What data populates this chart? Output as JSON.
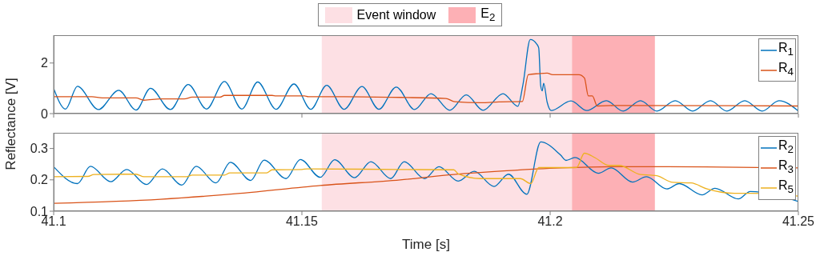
{
  "chart_data": [
    {
      "type": "line",
      "ylabel": "Reflectance [V]",
      "xlim": [
        41.1,
        41.25
      ],
      "xticks": [
        41.1,
        41.15,
        41.2,
        41.25
      ],
      "ylim": [
        0,
        3.1
      ],
      "yticks": [
        0,
        2
      ],
      "tick_labels": "y",
      "legend": "top right",
      "bands": [
        {
          "axis": "x",
          "from": 41.154,
          "to": 41.2044,
          "label": "Event window",
          "color": "#fde0e4"
        },
        {
          "axis": "x",
          "from": 41.2044,
          "to": 41.2211,
          "label": "E$_{2}$",
          "color": "#fdb0b5"
        }
      ],
      "series": [
        {
          "name": "R$_{1}$",
          "color": "#0072bd",
          "x": [
            41.1,
            41.1024,
            41.1048,
            41.109,
            41.1131,
            41.1166,
            41.1195,
            41.1235,
            41.1271,
            41.1308,
            41.1344,
            41.1379,
            41.1411,
            41.1448,
            41.1484,
            41.1518,
            41.155,
            41.1585,
            41.1621,
            41.1655,
            41.169,
            41.1727,
            41.176,
            41.1798,
            41.1831,
            41.1865,
            41.1905,
            41.1935,
            41.1945,
            41.196,
            41.1973,
            41.1977,
            41.1981,
            41.1984,
            41.1987,
            41.1994,
            41.2002,
            41.2042,
            41.2074,
            41.2113,
            41.2147,
            41.2182,
            41.2215,
            41.2252,
            41.2287,
            41.2323,
            41.2356,
            41.2392,
            41.2427,
            41.2461,
            41.25
          ],
          "values": [
            1.0,
            0.18,
            1.08,
            0.16,
            0.92,
            0.14,
            1.0,
            0.16,
            1.15,
            0.18,
            1.27,
            0.18,
            1.25,
            0.17,
            1.17,
            0.17,
            1.12,
            0.17,
            1.07,
            0.17,
            1.05,
            0.16,
            0.79,
            0.13,
            0.74,
            0.13,
            0.79,
            0.29,
            1.12,
            2.93,
            2.75,
            2.6,
            1.1,
            0.9,
            1.2,
            0.45,
            0.12,
            0.5,
            0.12,
            0.51,
            0.1,
            0.51,
            0.1,
            0.51,
            0.1,
            0.51,
            0.1,
            0.51,
            0.1,
            0.51,
            0.1
          ]
        },
        {
          "name": "R$_{4}$",
          "color": "#d95319",
          "x": [
            41.1,
            41.1077,
            41.1098,
            41.1166,
            41.1182,
            41.1215,
            41.1263,
            41.1279,
            41.1335,
            41.1344,
            41.144,
            41.1448,
            41.1505,
            41.1513,
            41.1585,
            41.1698,
            41.179,
            41.1808,
            41.186,
            41.1897,
            41.1944,
            41.1956,
            41.1977,
            41.1994,
            41.2005,
            41.2058,
            41.2069,
            41.2077,
            41.2085,
            41.2095,
            41.2129,
            41.25
          ],
          "values": [
            0.67,
            0.67,
            0.62,
            0.62,
            0.53,
            0.58,
            0.58,
            0.65,
            0.65,
            0.72,
            0.72,
            0.7,
            0.7,
            0.67,
            0.67,
            0.64,
            0.6,
            0.47,
            0.43,
            0.46,
            0.48,
            1.54,
            1.58,
            1.6,
            1.54,
            1.54,
            1.41,
            0.7,
            0.7,
            0.3,
            0.32,
            0.3
          ]
        }
      ]
    },
    {
      "type": "line",
      "xlabel": "Time [s]",
      "xlim": [
        41.1,
        41.25
      ],
      "xticks": [
        41.1,
        41.15,
        41.2,
        41.25
      ],
      "ylim": [
        0.1,
        0.35
      ],
      "yticks": [
        0.1,
        0.2,
        0.3
      ],
      "legend": "top right",
      "bands": [
        {
          "axis": "x",
          "from": 41.154,
          "to": 41.2044,
          "color": "#fde0e4"
        },
        {
          "axis": "x",
          "from": 41.2044,
          "to": 41.2211,
          "color": "#fdb0b5"
        }
      ],
      "series": [
        {
          "name": "R$_{2}$",
          "color": "#0072bd",
          "x": [
            41.1,
            41.1048,
            41.1074,
            41.1115,
            41.1147,
            41.1187,
            41.1219,
            41.1258,
            41.1287,
            41.1327,
            41.1356,
            41.1397,
            41.1424,
            41.1468,
            41.1497,
            41.1537,
            41.1566,
            41.1606,
            41.1639,
            41.1679,
            41.1706,
            41.1747,
            41.1776,
            41.1815,
            41.1847,
            41.1887,
            41.1916,
            41.1953,
            41.1981,
            41.2021,
            41.2032,
            41.205,
            41.2097,
            41.2123,
            41.2166,
            41.2194,
            41.2235,
            41.226,
            41.2306,
            41.2332,
            41.2379,
            41.2403,
            41.25
          ],
          "values": [
            0.242,
            0.188,
            0.243,
            0.194,
            0.233,
            0.185,
            0.235,
            0.183,
            0.243,
            0.19,
            0.256,
            0.198,
            0.263,
            0.204,
            0.265,
            0.208,
            0.264,
            0.207,
            0.258,
            0.204,
            0.258,
            0.204,
            0.242,
            0.196,
            0.227,
            0.179,
            0.218,
            0.154,
            0.321,
            0.279,
            0.262,
            0.271,
            0.221,
            0.238,
            0.193,
            0.21,
            0.171,
            0.188,
            0.152,
            0.173,
            0.139,
            0.163,
            0.131
          ]
        },
        {
          "name": "R$_{3}$",
          "color": "#d95319",
          "x": [
            41.1,
            41.1215,
            41.1376,
            41.1537,
            41.1698,
            41.1806,
            41.1913,
            41.2021,
            41.2129,
            41.2235,
            41.25
          ],
          "values": [
            0.125,
            0.138,
            0.157,
            0.182,
            0.2,
            0.217,
            0.229,
            0.238,
            0.242,
            0.242,
            0.238
          ]
        },
        {
          "name": "R$_{5}$",
          "color": "#edb120",
          "x": [
            41.1,
            41.1069,
            41.1081,
            41.1166,
            41.1182,
            41.1268,
            41.1279,
            41.1344,
            41.1355,
            41.1429,
            41.144,
            41.15,
            41.151,
            41.1698,
            41.1806,
            41.1815,
            41.186,
            41.194,
            41.1961,
            41.1977,
            41.2053,
            41.2069,
            41.209,
            41.2118,
            41.2139,
            41.2182,
            41.2203,
            41.2215,
            41.2247,
            41.2284,
            41.2316,
            41.2371,
            41.2408,
            41.25
          ],
          "values": [
            0.21,
            0.211,
            0.217,
            0.218,
            0.21,
            0.21,
            0.215,
            0.215,
            0.222,
            0.222,
            0.232,
            0.233,
            0.235,
            0.233,
            0.232,
            0.219,
            0.204,
            0.204,
            0.188,
            0.239,
            0.239,
            0.285,
            0.271,
            0.246,
            0.246,
            0.217,
            0.215,
            0.213,
            0.192,
            0.19,
            0.171,
            0.157,
            0.157,
            0.148
          ]
        }
      ]
    }
  ]
}
